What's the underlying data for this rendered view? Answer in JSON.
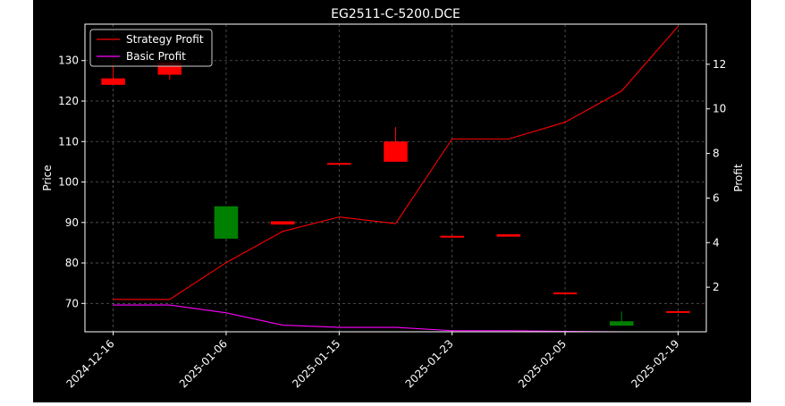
{
  "chart_data": {
    "type": "candlestick",
    "title": "EG2511-C-5200.DCE",
    "left_ylabel": "Price",
    "right_ylabel": "Profit",
    "x_tick_labels": [
      "2024-12-16",
      "2025-01-06",
      "2025-01-15",
      "2025-01-23",
      "2025-02-05",
      "2025-02-19"
    ],
    "x_tick_index": [
      0,
      2,
      4,
      6,
      8,
      10
    ],
    "left_ylim": [
      63,
      139
    ],
    "right_ylim": [
      0,
      13.8
    ],
    "left_ticks": [
      70,
      80,
      90,
      100,
      110,
      120,
      130
    ],
    "right_ticks": [
      2,
      4,
      6,
      8,
      10,
      12
    ],
    "grid": true,
    "legend_position": "top-left",
    "candles": [
      {
        "i": 0,
        "open": 124.0,
        "close": 125.6,
        "high": 130.0,
        "low": 124.0,
        "color": "#ff0000"
      },
      {
        "i": 1,
        "open": 126.5,
        "close": 129.5,
        "high": 131.5,
        "low": 125.2,
        "color": "#ff0000"
      },
      {
        "i": 2,
        "open": 94.0,
        "close": 86.0,
        "high": 94.0,
        "low": 86.0,
        "color": "#008000"
      },
      {
        "i": 3,
        "open": 89.5,
        "close": 90.3,
        "high": 90.3,
        "low": 89.5,
        "color": "#ff0000"
      },
      {
        "i": 4,
        "open": 104.4,
        "close": 104.7,
        "high": 104.7,
        "low": 104.4,
        "color": "#ff0000"
      },
      {
        "i": 5,
        "open": 105.0,
        "close": 110.0,
        "high": 113.6,
        "low": 105.0,
        "color": "#ff0000"
      },
      {
        "i": 6,
        "open": 86.4,
        "close": 86.7,
        "high": 86.7,
        "low": 86.4,
        "color": "#ff0000"
      },
      {
        "i": 7,
        "open": 86.5,
        "close": 87.1,
        "high": 87.1,
        "low": 86.5,
        "color": "#ff0000"
      },
      {
        "i": 8,
        "open": 72.4,
        "close": 72.7,
        "high": 72.7,
        "low": 72.4,
        "color": "#ff0000"
      },
      {
        "i": 9,
        "open": 65.6,
        "close": 64.5,
        "high": 68.0,
        "low": 64.5,
        "color": "#008000"
      },
      {
        "i": 10,
        "open": 67.8,
        "close": 68.1,
        "high": 68.1,
        "low": 67.8,
        "color": "#ff0000"
      }
    ],
    "series": [
      {
        "name": "Strategy Profit",
        "color": "#ff0000",
        "values": [
          1.45,
          1.45,
          3.1,
          4.5,
          5.15,
          4.85,
          8.65,
          8.65,
          9.4,
          10.8,
          13.7
        ]
      },
      {
        "name": "Basic Profit",
        "color": "#ff00ff",
        "values": [
          1.2,
          1.2,
          0.85,
          0.3,
          0.2,
          0.2,
          0.05,
          0.05,
          0.02,
          0.0,
          0.0
        ]
      }
    ]
  }
}
